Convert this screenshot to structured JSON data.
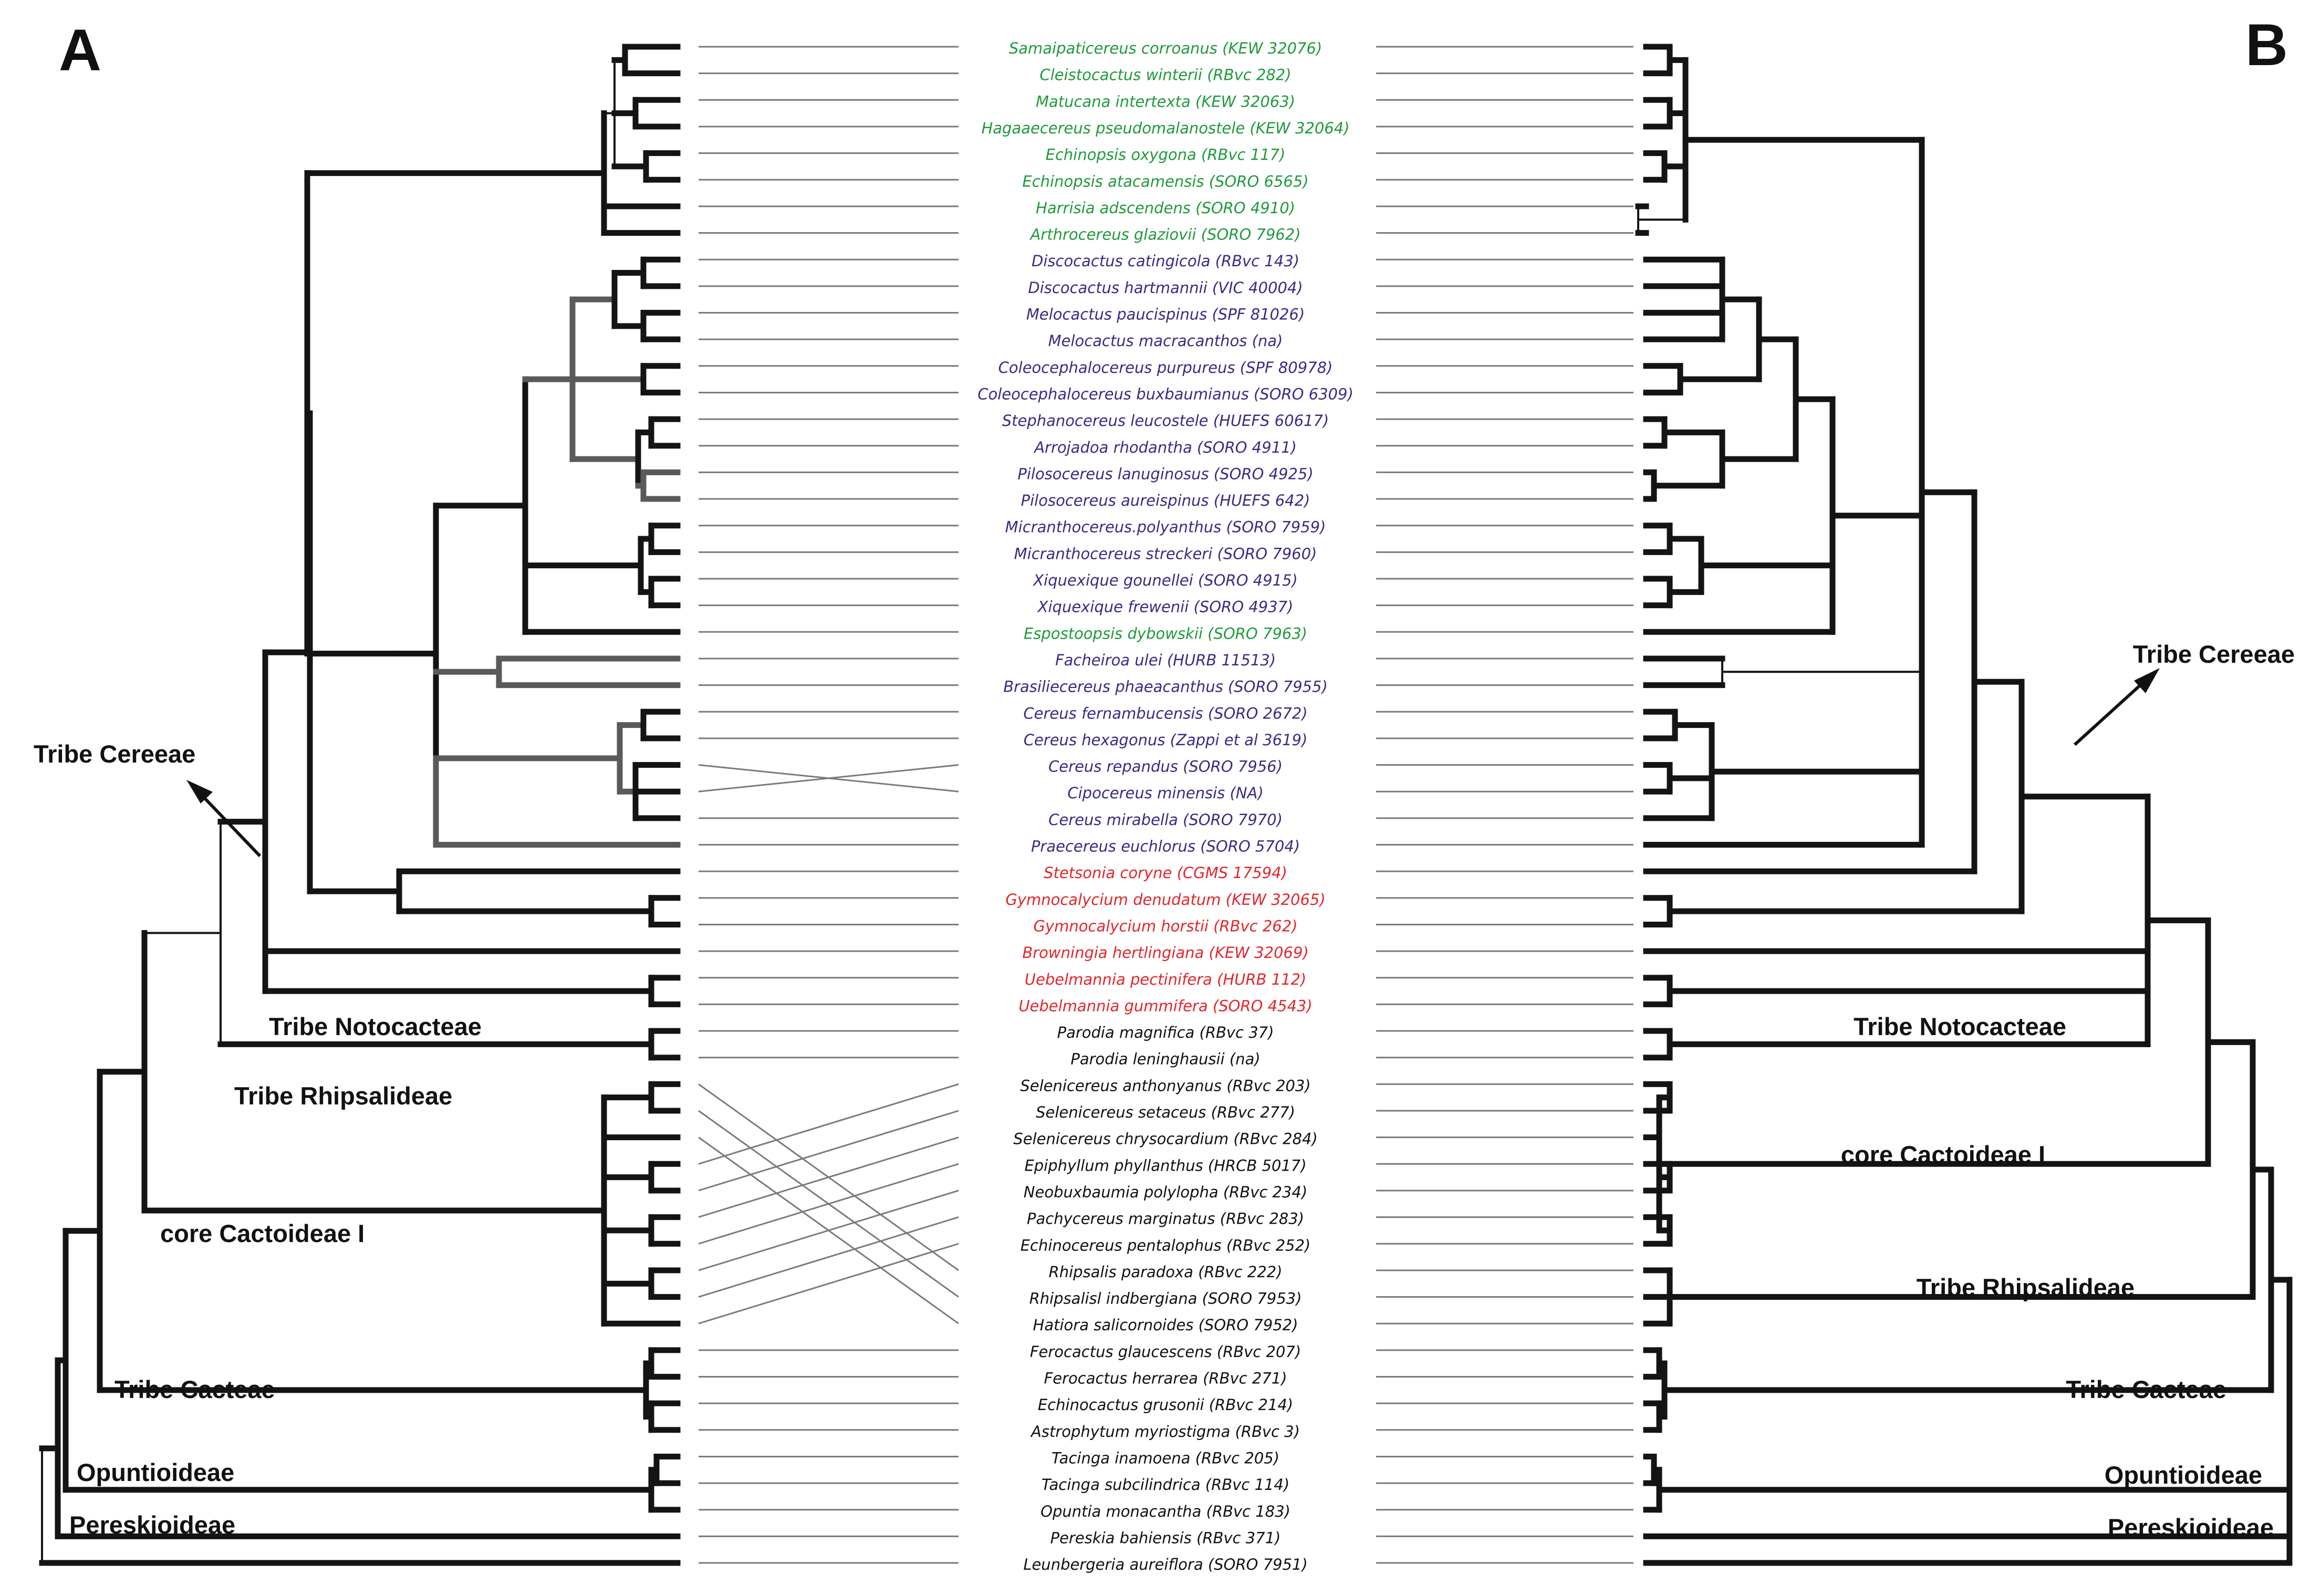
{
  "panels": {
    "left": "A",
    "right": "B"
  },
  "colors": {
    "green": "#1f9a3c",
    "purple": "#3a2a86",
    "red": "#e3262b",
    "black": "#111111",
    "branch": "#141414",
    "grey_branch": "#5a5a5a",
    "connector": "#7a7a7a"
  },
  "taxa": [
    {
      "name": "Samaipaticereus corroanus (KEW 32076)",
      "group": "green"
    },
    {
      "name": "Cleistocactus winterii (RBvc 282)",
      "group": "green"
    },
    {
      "name": "Matucana intertexta (KEW 32063)",
      "group": "green"
    },
    {
      "name": "Hagaaecereus pseudomalanostele (KEW 32064)",
      "group": "green"
    },
    {
      "name": "Echinopsis oxygona (RBvc 117)",
      "group": "green"
    },
    {
      "name": "Echinopsis atacamensis (SORO 6565)",
      "group": "green"
    },
    {
      "name": "Harrisia adscendens (SORO 4910)",
      "group": "green"
    },
    {
      "name": "Arthrocereus glaziovii (SORO 7962)",
      "group": "green"
    },
    {
      "name": "Discocactus catingicola (RBvc 143)",
      "group": "purple"
    },
    {
      "name": "Discocactus hartmannii (VIC 40004)",
      "group": "purple"
    },
    {
      "name": "Melocactus paucispinus (SPF 81026)",
      "group": "purple"
    },
    {
      "name": "Melocactus macracanthos (na)",
      "group": "purple"
    },
    {
      "name": "Coleocephalocereus purpureus (SPF 80978)",
      "group": "purple"
    },
    {
      "name": "Coleocephalocereus buxbaumianus (SORO 6309)",
      "group": "purple"
    },
    {
      "name": "Stephanocereus leucostele (HUEFS 60617)",
      "group": "purple"
    },
    {
      "name": "Arrojadoa rhodantha (SORO 4911)",
      "group": "purple"
    },
    {
      "name": "Pilosocereus lanuginosus (SORO 4925)",
      "group": "purple"
    },
    {
      "name": "Pilosocereus aureispinus (HUEFS 642)",
      "group": "purple"
    },
    {
      "name": "Micranthocereus.polyanthus (SORO 7959)",
      "group": "purple"
    },
    {
      "name": "Micranthocereus streckeri (SORO 7960)",
      "group": "purple"
    },
    {
      "name": "Xiquexique gounellei (SORO 4915)",
      "group": "purple"
    },
    {
      "name": "Xiquexique frewenii (SORO 4937)",
      "group": "purple"
    },
    {
      "name": "Espostoopsis dybowskii (SORO 7963)",
      "group": "green"
    },
    {
      "name": "Facheiroa ulei (HURB 11513)",
      "group": "purple"
    },
    {
      "name": "Brasiliecereus phaeacanthus (SORO 7955)",
      "group": "purple"
    },
    {
      "name": "Cereus fernambucensis (SORO 2672)",
      "group": "purple"
    },
    {
      "name": "Cereus hexagonus (Zappi et al 3619)",
      "group": "purple"
    },
    {
      "name": "Cereus repandus (SORO 7956)",
      "group": "purple"
    },
    {
      "name": "Cipocereus minensis (NA)",
      "group": "purple"
    },
    {
      "name": "Cereus mirabella (SORO 7970)",
      "group": "purple"
    },
    {
      "name": "Praecereus euchlorus (SORO 5704)",
      "group": "purple"
    },
    {
      "name": "Stetsonia coryne (CGMS 17594)",
      "group": "red"
    },
    {
      "name": "Gymnocalycium denudatum (KEW 32065)",
      "group": "red"
    },
    {
      "name": "Gymnocalycium horstii (RBvc 262)",
      "group": "red"
    },
    {
      "name": "Browningia hertlingiana (KEW 32069)",
      "group": "red"
    },
    {
      "name": "Uebelmannia pectinifera (HURB 112)",
      "group": "red"
    },
    {
      "name": "Uebelmannia gummifera (SORO 4543)",
      "group": "red"
    },
    {
      "name": "Parodia magnifica (RBvc 37)",
      "group": "black"
    },
    {
      "name": "Parodia leninghausii (na)",
      "group": "black"
    },
    {
      "name": "Selenicereus anthonyanus (RBvc 203)",
      "group": "black"
    },
    {
      "name": "Selenicereus setaceus (RBvc 277)",
      "group": "black"
    },
    {
      "name": "Selenicereus chrysocardium (RBvc 284)",
      "group": "black"
    },
    {
      "name": "Epiphyllum phyllanthus (HRCB 5017)",
      "group": "black"
    },
    {
      "name": "Neobuxbaumia polylopha (RBvc 234)",
      "group": "black"
    },
    {
      "name": "Pachycereus marginatus (RBvc 283)",
      "group": "black"
    },
    {
      "name": "Echinocereus pentalophus (RBvc 252)",
      "group": "black"
    },
    {
      "name": "Rhipsalis paradoxa (RBvc 222)",
      "group": "black"
    },
    {
      "name": "Rhipsalisl indbergiana (SORO 7953)",
      "group": "black"
    },
    {
      "name": "Hatiora salicornoides (SORO 7952)",
      "group": "black"
    },
    {
      "name": "Ferocactus glaucescens (RBvc 207)",
      "group": "black"
    },
    {
      "name": "Ferocactus herrarea (RBvc 271)",
      "group": "black"
    },
    {
      "name": "Echinocactus grusonii (RBvc 214)",
      "group": "black"
    },
    {
      "name": "Astrophytum myriostigma (RBvc 3)",
      "group": "black"
    },
    {
      "name": "Tacinga inamoena (RBvc 205)",
      "group": "black"
    },
    {
      "name": "Tacinga subcilindrica (RBvc 114)",
      "group": "black"
    },
    {
      "name": "Opuntia monacantha (RBvc 183)",
      "group": "black"
    },
    {
      "name": "Pereskia bahiensis (RBvc 371)",
      "group": "black"
    },
    {
      "name": "Leunbergeria aureiflora (SORO 7951)",
      "group": "black"
    }
  ],
  "crossing_connectors": {
    "left_order": [
      39,
      40,
      41,
      42,
      43,
      44,
      45,
      46,
      47,
      48
    ],
    "right_order": [
      46,
      47,
      48,
      39,
      40,
      41,
      42,
      43,
      44,
      45
    ],
    "cereus_left": [
      27,
      28
    ],
    "cereus_right": [
      28,
      27
    ]
  },
  "labels_left": {
    "tribe_cereeae": "Tribe Cereeae",
    "tribe_notocacteae": "Tribe Notocacteae",
    "tribe_rhipsalideae": "Tribe Rhipsalideae",
    "core_cactoideae": "core Cactoideae I",
    "tribe_cacteae": "Tribe Cacteae",
    "opuntioideae": "Opuntioideae",
    "pereskioideae": "Pereskioideae"
  },
  "labels_right": {
    "tribe_cereeae": "Tribe Cereeae",
    "tribe_notocacteae": "Tribe Notocacteae",
    "core_cactoideae": "core Cactoideae I",
    "tribe_rhipsalideae": "Tribe Rhipsalideae",
    "tribe_cacteae": "Tribe Cacteae",
    "opuntioideae": "Opuntioideae",
    "pereskioideae": "Pereskioideae"
  }
}
